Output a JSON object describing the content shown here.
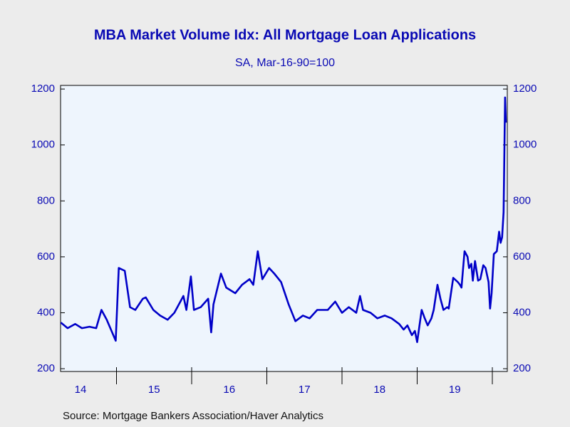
{
  "chart_data": {
    "type": "line",
    "title": "MBA Market Volume Idx: All Mortgage Loan Applications",
    "subtitle": "SA, Mar-16-90=100",
    "source": "Source:  Mortgage Bankers Association/Haver Analytics",
    "x": [
      2014.26,
      2014.35,
      2014.45,
      2014.54,
      2014.64,
      2014.73,
      2014.8,
      2014.87,
      2014.99,
      2015.03,
      2015.11,
      2015.18,
      2015.25,
      2015.35,
      2015.39,
      2015.49,
      2015.58,
      2015.68,
      2015.77,
      2015.89,
      2015.93,
      2015.99,
      2016.03,
      2016.12,
      2016.22,
      2016.26,
      2016.29,
      2016.39,
      2016.46,
      2016.58,
      2016.67,
      2016.77,
      2016.82,
      2016.88,
      2016.94,
      2017.03,
      2017.1,
      2017.19,
      2017.29,
      2017.38,
      2017.48,
      2017.57,
      2017.67,
      2017.81,
      2017.91,
      2018.0,
      2018.09,
      2018.19,
      2018.24,
      2018.28,
      2018.38,
      2018.47,
      2018.57,
      2018.66,
      2018.76,
      2018.82,
      2018.87,
      2018.93,
      2018.97,
      2019.0,
      2019.06,
      2019.1,
      2019.14,
      2019.19,
      2019.22,
      2019.27,
      2019.31,
      2019.35,
      2019.4,
      2019.42,
      2019.48,
      2019.54,
      2019.57,
      2019.59,
      2019.63,
      2019.67,
      2019.69,
      2019.72,
      2019.74,
      2019.77,
      2019.81,
      2019.84,
      2019.88,
      2019.91,
      2019.95,
      2019.97,
      2019.99,
      2020.02,
      2020.06,
      2020.09,
      2020.11,
      2020.13,
      2020.15,
      2020.17,
      2020.18
    ],
    "series": [
      {
        "name": "MBA Market Volume Idx",
        "color": "#0000c8",
        "values": [
          365,
          345,
          360,
          345,
          350,
          345,
          410,
          375,
          300,
          560,
          550,
          420,
          410,
          450,
          455,
          410,
          390,
          375,
          400,
          460,
          410,
          530,
          410,
          420,
          450,
          330,
          430,
          540,
          490,
          470,
          500,
          520,
          500,
          620,
          520,
          560,
          540,
          510,
          430,
          370,
          390,
          380,
          410,
          410,
          440,
          400,
          420,
          400,
          460,
          410,
          400,
          380,
          390,
          380,
          360,
          340,
          355,
          320,
          335,
          295,
          410,
          380,
          355,
          380,
          410,
          500,
          450,
          410,
          420,
          415,
          525,
          510,
          500,
          490,
          620,
          600,
          560,
          575,
          515,
          585,
          515,
          520,
          570,
          560,
          510,
          415,
          470,
          610,
          620,
          690,
          650,
          670,
          760,
          1170,
          1080
        ]
      }
    ],
    "xlim": [
      2014.256,
      2020.199
    ],
    "xticks": [
      2015,
      2016,
      2017,
      2018,
      2019,
      2020
    ],
    "xtick_labels": [
      {
        "value": 2014.5,
        "label": "14"
      },
      {
        "value": 2015.5,
        "label": "15"
      },
      {
        "value": 2016.5,
        "label": "16"
      },
      {
        "value": 2017.5,
        "label": "17"
      },
      {
        "value": 2018.5,
        "label": "18"
      },
      {
        "value": 2019.5,
        "label": "19"
      }
    ],
    "ylim": [
      190,
      1213
    ],
    "yticks": [
      200,
      400,
      600,
      800,
      1000,
      1200
    ],
    "y2lim": [
      190,
      1213
    ],
    "y2ticks": [
      200,
      400,
      600,
      800,
      1000,
      1200
    ],
    "plot_background": "#eef5fd"
  }
}
